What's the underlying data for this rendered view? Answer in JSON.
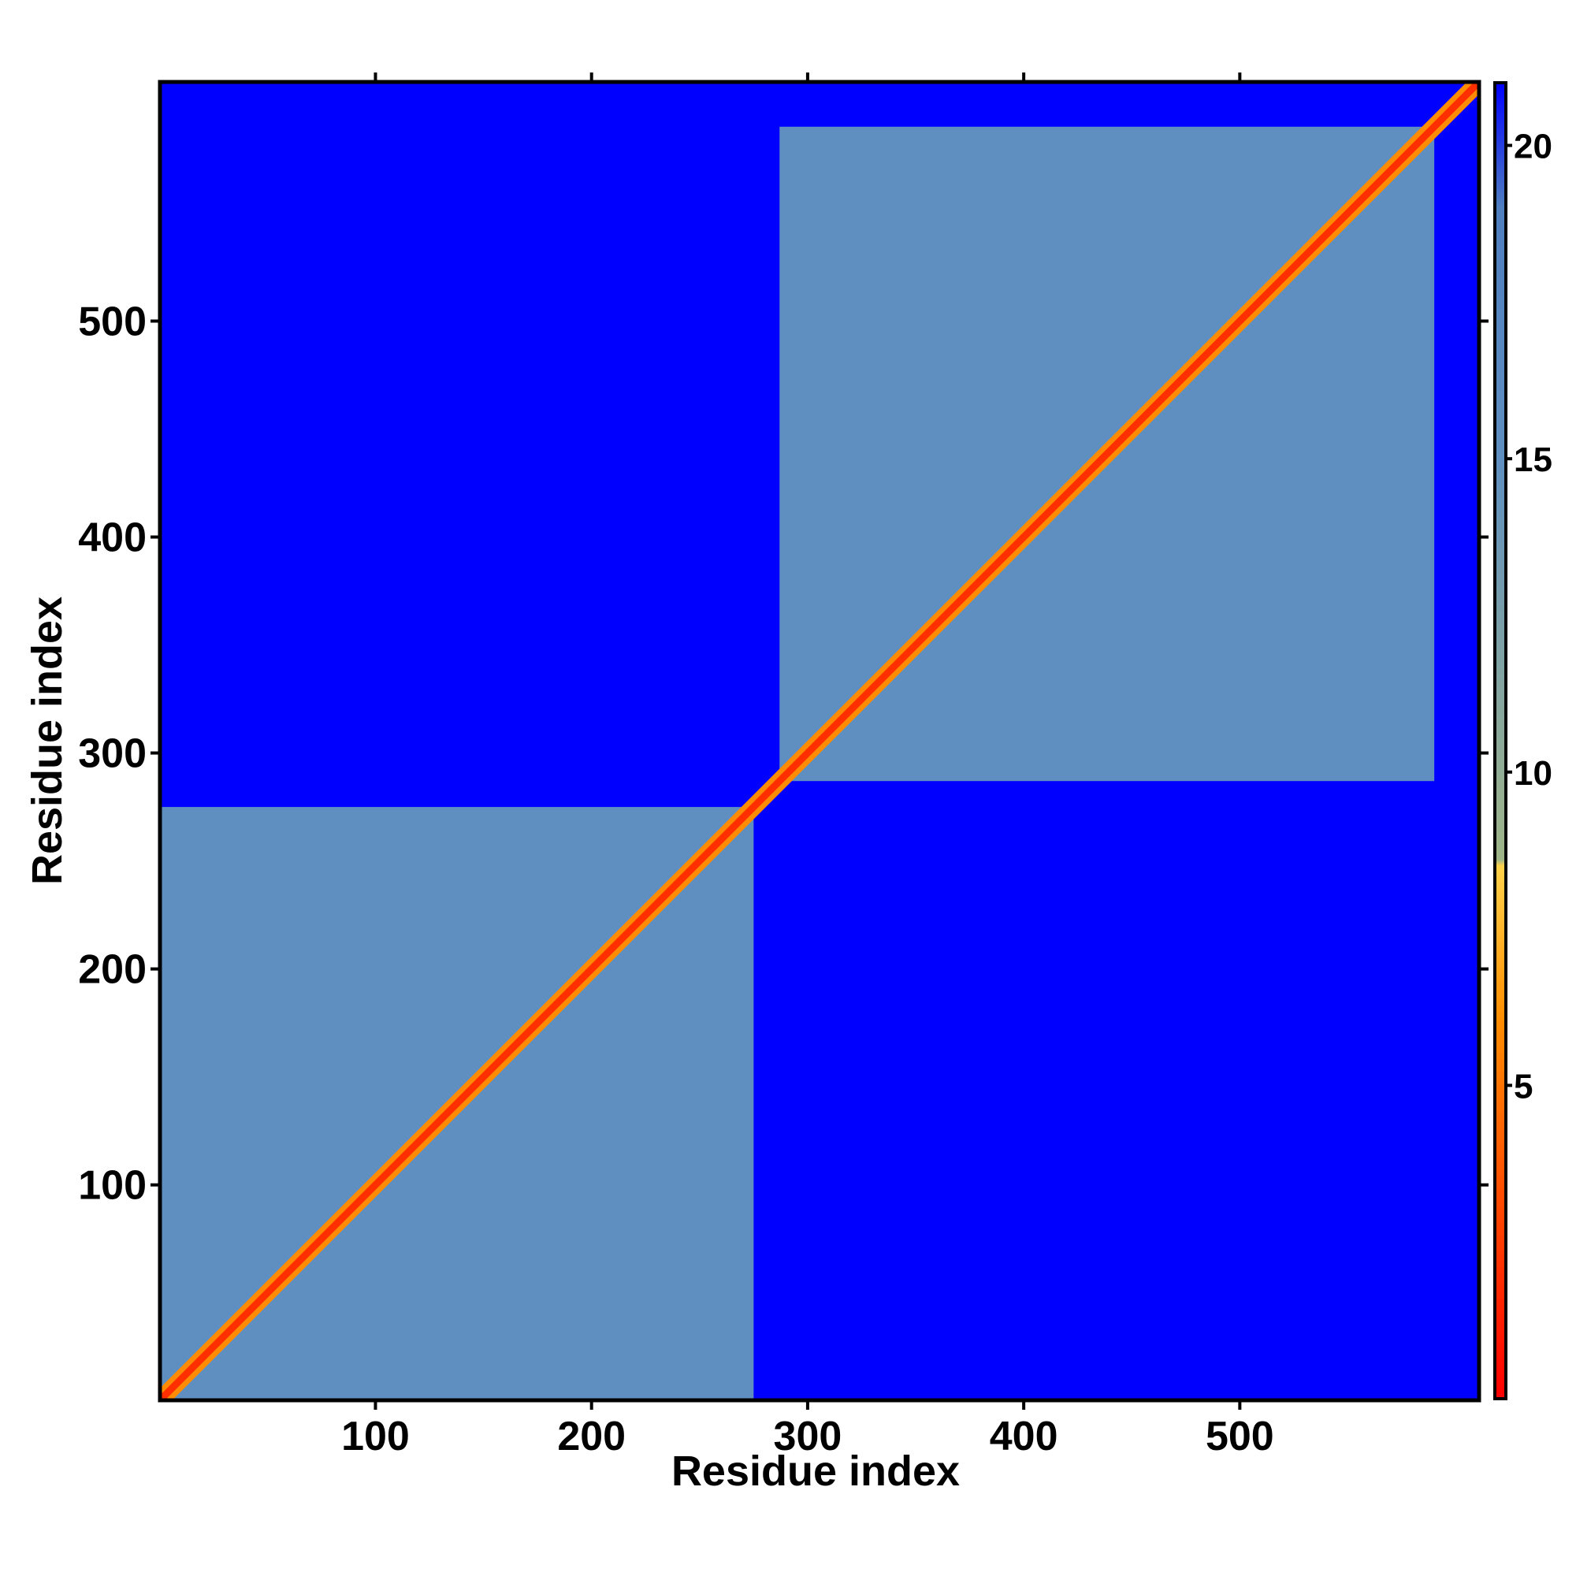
{
  "chart_data": {
    "type": "heatmap",
    "title": "",
    "xlabel": "Residue index",
    "ylabel": "Residue index",
    "xlim": [
      1,
      610
    ],
    "ylim": [
      1,
      610
    ],
    "x_ticks": [
      100,
      200,
      300,
      400,
      500
    ],
    "y_ticks": [
      100,
      200,
      300,
      400,
      500
    ],
    "colorbar": {
      "range": [
        0,
        21
      ],
      "ticks": [
        5,
        10,
        15,
        20
      ],
      "stops": [
        {
          "value": 0,
          "color": "#ff0000"
        },
        {
          "value": 6,
          "color": "#ff8c00"
        },
        {
          "value": 8.5,
          "color": "#ffd24a"
        },
        {
          "value": 8.6,
          "color": "#9fb588"
        },
        {
          "value": 15,
          "color": "#5f8fc0"
        },
        {
          "value": 19,
          "color": "#4f7fbf"
        },
        {
          "value": 21,
          "color": "#0000ff"
        }
      ]
    },
    "domains": [
      {
        "start": 1,
        "end": 275,
        "inner_distance": 15
      },
      {
        "start": 287,
        "end": 590,
        "inner_distance": 15
      }
    ],
    "background_distance": 21,
    "diagonal_distance": 2
  }
}
